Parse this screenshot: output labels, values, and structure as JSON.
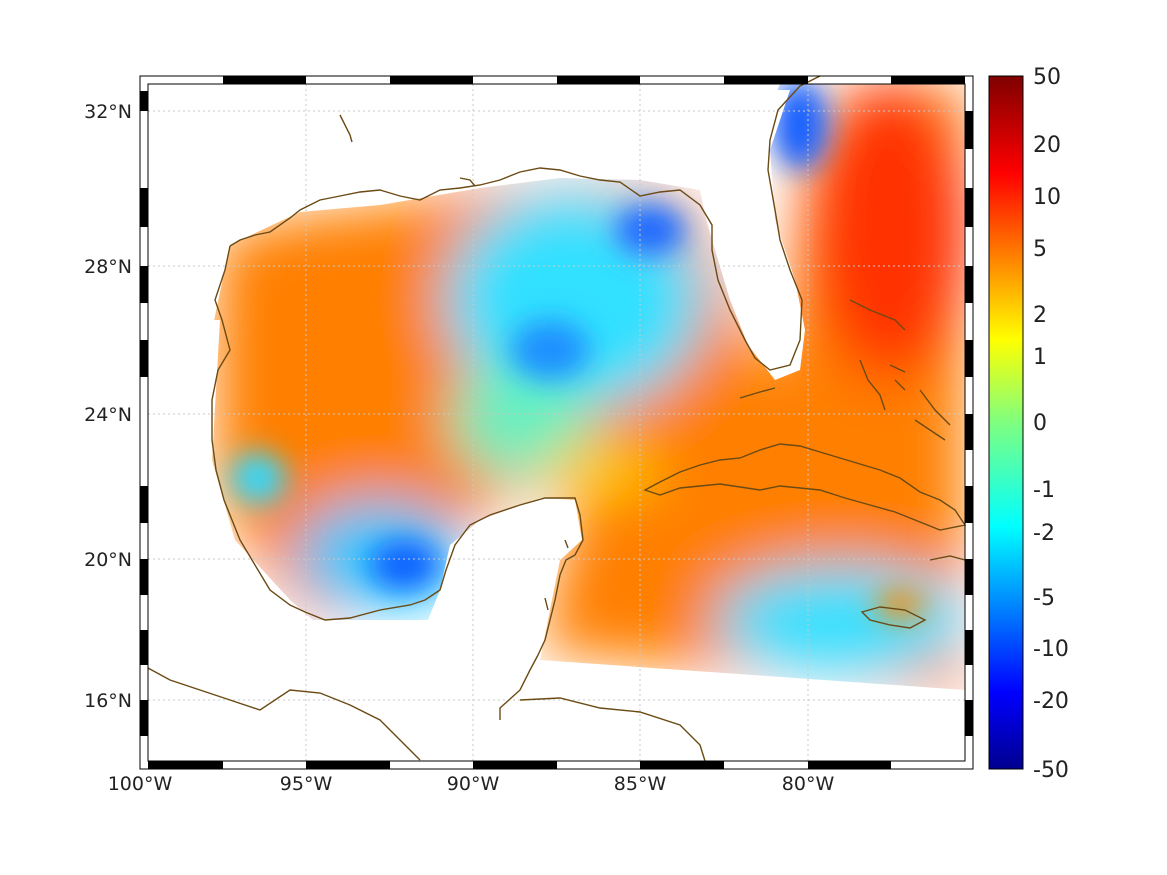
{
  "map": {
    "lon_range": [
      -100,
      -75.3
    ],
    "lat_range": [
      14.3,
      33.0
    ],
    "x_ticks": [
      {
        "value": -100,
        "label": "100°W"
      },
      {
        "value": -95,
        "label": "95°W"
      },
      {
        "value": -90,
        "label": "90°W"
      },
      {
        "value": -85,
        "label": "85°W"
      },
      {
        "value": -80,
        "label": "80°W"
      }
    ],
    "y_ticks": [
      {
        "value": 32,
        "label": "32°N"
      },
      {
        "value": 28,
        "label": "28°N"
      },
      {
        "value": 24,
        "label": "24°N"
      },
      {
        "value": 20,
        "label": "20°N"
      },
      {
        "value": 16,
        "label": "16°N"
      }
    ],
    "grid": "dotted",
    "coastline_color": "#6b4a14"
  },
  "colorbar": {
    "colormap": "jet",
    "range": [
      -50,
      50
    ],
    "ticks": [
      {
        "value": 50,
        "label": "50"
      },
      {
        "value": 20,
        "label": "20"
      },
      {
        "value": 10,
        "label": "10"
      },
      {
        "value": 5,
        "label": "5"
      },
      {
        "value": 2,
        "label": "2"
      },
      {
        "value": 1,
        "label": "1"
      },
      {
        "value": 0,
        "label": "0"
      },
      {
        "value": -1,
        "label": "-1"
      },
      {
        "value": -2,
        "label": "-2"
      },
      {
        "value": -5,
        "label": "-5"
      },
      {
        "value": -10,
        "label": "-10"
      },
      {
        "value": -20,
        "label": "-20"
      },
      {
        "value": -50,
        "label": "-50"
      }
    ]
  },
  "field_features": [
    {
      "region": "Atlantic east of Florida",
      "value": 15
    },
    {
      "region": "Western Gulf",
      "value": 6
    },
    {
      "region": "Northern Gulf",
      "value": -2
    },
    {
      "region": "Central Gulf",
      "value": -2
    },
    {
      "region": "Off South Carolina coast",
      "value": -5
    },
    {
      "region": "Bay of Campeche",
      "value": -4
    },
    {
      "region": "Western Gulf eddy",
      "value": -1
    },
    {
      "region": "Caribbean south of Cuba",
      "value": -1
    },
    {
      "region": "Loop current / Yucatan",
      "value": 5
    }
  ]
}
